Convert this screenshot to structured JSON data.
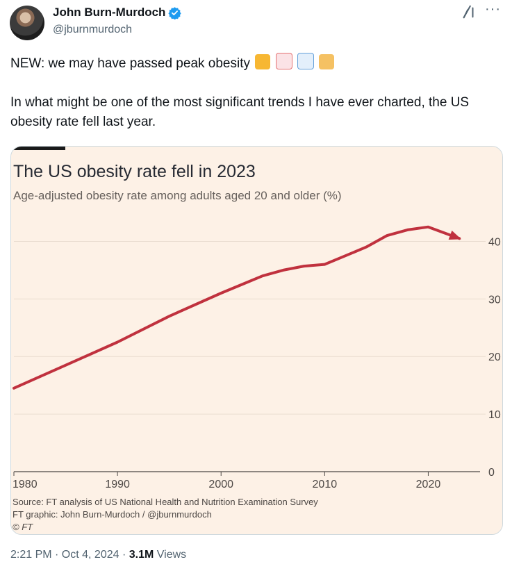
{
  "author": {
    "display_name": "John Burn-Murdoch",
    "handle": "@jburnmurdoch",
    "verified": true,
    "avatar_icon": "avatar-photo"
  },
  "header_icons": [
    "grok-icon",
    "more-options-icon"
  ],
  "more_label": "···",
  "tweet": {
    "line1": "NEW: we may have passed peak obesity",
    "emojis": [
      "party-popper",
      "chart-increasing",
      "chart-decreasing",
      "folded-hands"
    ],
    "line2": "In what might be one of the most significant trends I have ever charted, the US obesity rate fell last year."
  },
  "meta": {
    "time": "2:21 PM · Oct 4, 2024 · ",
    "views_count": "3.1M",
    "views_label": " Views"
  },
  "colors": {
    "accent": "#1d9bf0",
    "line": "#c0313e",
    "chart_bg": "#fdf1e6"
  },
  "chart_data": {
    "type": "line",
    "title": "The US obesity rate fell in 2023",
    "subtitle": "Age-adjusted obesity rate among adults aged 20 and older (%)",
    "xlabel": "",
    "ylabel": "",
    "x": [
      1980,
      1985,
      1990,
      1995,
      2000,
      2002,
      2004,
      2006,
      2008,
      2010,
      2012,
      2014,
      2016,
      2018,
      2020,
      2023
    ],
    "series": [
      {
        "values": [
          14.5,
          18.5,
          22.5,
          27.0,
          31.0,
          32.5,
          34.0,
          35.0,
          35.7,
          36.0,
          37.5,
          39.0,
          41.0,
          42.0,
          42.5,
          40.5
        ]
      }
    ],
    "xlim": [
      1980,
      2025
    ],
    "ylim": [
      0,
      45
    ],
    "x_ticks": [
      "1980",
      "1990",
      "2000",
      "2010",
      "2020"
    ],
    "y_ticks": [
      "0",
      "10",
      "20",
      "30",
      "40"
    ],
    "grid": true,
    "source_lines": [
      "Source: FT analysis of US National Health and Nutrition Examination Survey",
      "FT graphic: John Burn-Murdoch / @jburnmurdoch",
      "© FT"
    ]
  }
}
